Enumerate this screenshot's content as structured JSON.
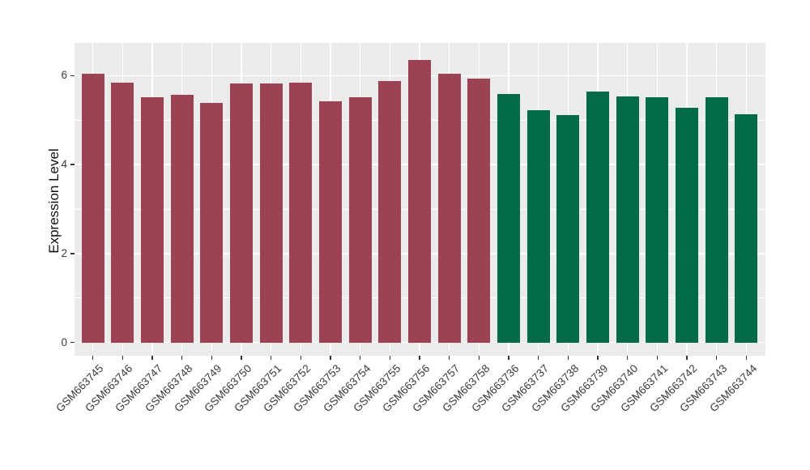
{
  "figure": {
    "background": "#FFFFFF",
    "panel_background": "#EBEBEB",
    "grid_color": "#FFFFFF",
    "tick_color": "#333333",
    "axis_text_color": "#3A3A3A",
    "axis_title_color": "#111111"
  },
  "chart_data": {
    "type": "bar",
    "title": "",
    "xlabel": "",
    "ylabel": "Expression Level",
    "ylim": [
      0,
      6.73
    ],
    "yticks": [
      0,
      2,
      4,
      6
    ],
    "yticks_minor": [
      1,
      3,
      5
    ],
    "grid": "white major and minor gridlines on gray panel",
    "legend_position": "none",
    "categories": [
      "GSM663745",
      "GSM663746",
      "GSM663747",
      "GSM663748",
      "GSM663749",
      "GSM663750",
      "GSM663751",
      "GSM663752",
      "GSM663753",
      "GSM663754",
      "GSM663755",
      "GSM663756",
      "GSM663757",
      "GSM663758",
      "GSM663736",
      "GSM663737",
      "GSM663738",
      "GSM663739",
      "GSM663740",
      "GSM663741",
      "GSM663742",
      "GSM663743",
      "GSM663744"
    ],
    "values": [
      6.05,
      5.84,
      5.51,
      5.57,
      5.38,
      5.83,
      5.83,
      5.84,
      5.42,
      5.51,
      5.88,
      6.35,
      6.04,
      5.93,
      5.59,
      5.22,
      5.12,
      5.65,
      5.53,
      5.51,
      5.27,
      5.51,
      5.13
    ],
    "groups": [
      {
        "label": "GSM663745-GSM663758",
        "color": "#9B4353",
        "from": 0,
        "to": 13
      },
      {
        "label": "GSM663736-GSM663744",
        "color": "#046B49",
        "from": 14,
        "to": 22
      }
    ]
  }
}
